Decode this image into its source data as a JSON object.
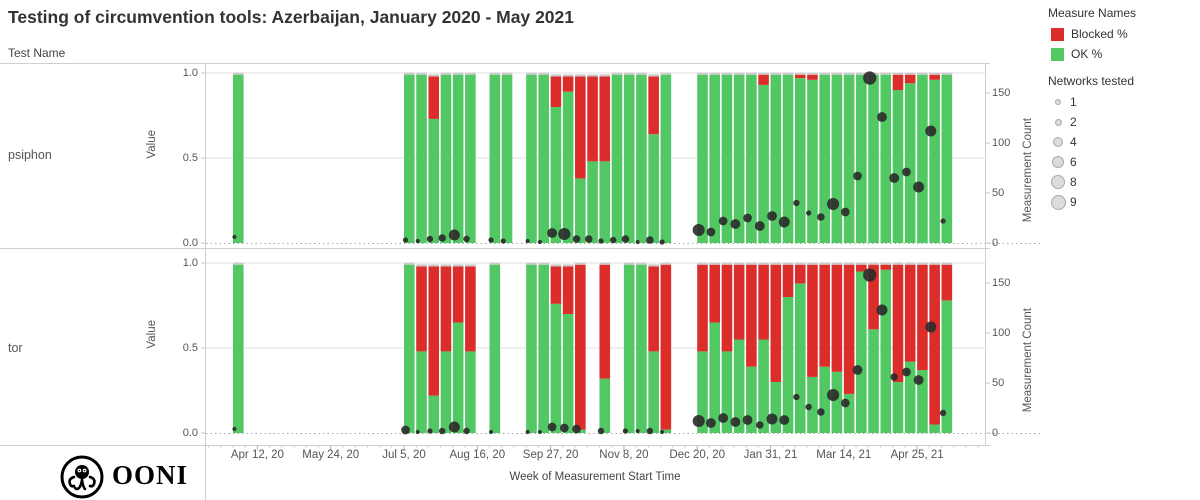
{
  "title": "Testing of circumvention tools: Azerbaijan, January 2020 - May 2021",
  "row_header": "Test Name",
  "colors": {
    "blocked": "#db2d2a",
    "ok": "#52c864",
    "dot": "#2a2a2a"
  },
  "y_axis": {
    "title": "Value",
    "ticks": [
      "1.0",
      "0.5",
      "0.0"
    ]
  },
  "y2_axis": {
    "title": "Measurement Count",
    "ticks": [
      "0",
      "50",
      "100",
      "150"
    ]
  },
  "x_axis": {
    "title": "Week of Measurement Start Time",
    "ticks": [
      {
        "label": "Apr 12, 20",
        "date": "2020-04-12"
      },
      {
        "label": "May 24, 20",
        "date": "2020-05-24"
      },
      {
        "label": "Jul 5, 20",
        "date": "2020-07-05"
      },
      {
        "label": "Aug 16, 20",
        "date": "2020-08-16"
      },
      {
        "label": "Sep 27, 20",
        "date": "2020-09-27"
      },
      {
        "label": "Nov 8, 20",
        "date": "2020-11-08"
      },
      {
        "label": "Dec 20, 20",
        "date": "2020-12-20"
      },
      {
        "label": "Jan 31, 21",
        "date": "2021-01-31"
      },
      {
        "label": "Mar 14, 21",
        "date": "2021-03-14"
      },
      {
        "label": "Apr 25, 21",
        "date": "2021-04-25"
      }
    ]
  },
  "legend": {
    "measure_title": "Measure Names",
    "measures": [
      {
        "label": "Blocked %",
        "color": "#db2d2a"
      },
      {
        "label": "OK %",
        "color": "#52c864"
      }
    ],
    "networks_title": "Networks tested",
    "network_sizes": [
      1,
      2,
      4,
      6,
      8,
      9
    ]
  },
  "footer": {
    "brand": "OONI",
    "logo_icon": "ooni-octopus-icon"
  },
  "chart_data": {
    "type": "bar",
    "stacked": true,
    "value_range": [
      0,
      1
    ],
    "count_range": [
      0,
      175
    ],
    "origin_week": "2020-07-05",
    "panels": [
      {
        "test": "psiphon",
        "bars": [
          {
            "w": "2020-03-29",
            "b": 0.0,
            "o": 0.99,
            "c": 6,
            "n": 1
          },
          {
            "w": "2020-07-05",
            "b": 0.0,
            "o": 0.99,
            "c": 3,
            "n": 2
          },
          {
            "w": "2020-07-12",
            "b": 0.0,
            "o": 0.99,
            "c": 2,
            "n": 1
          },
          {
            "w": "2020-07-19",
            "b": 0.25,
            "o": 0.73,
            "c": 4,
            "n": 3
          },
          {
            "w": "2020-07-26",
            "b": 0.0,
            "o": 0.99,
            "c": 5,
            "n": 4
          },
          {
            "w": "2020-08-02",
            "b": 0.0,
            "o": 0.99,
            "c": 8,
            "n": 7
          },
          {
            "w": "2020-08-09",
            "b": 0.0,
            "o": 0.99,
            "c": 4,
            "n": 3
          },
          {
            "w": "2020-08-23",
            "b": 0.0,
            "o": 0.99,
            "c": 3,
            "n": 2
          },
          {
            "w": "2020-08-30",
            "b": 0.0,
            "o": 0.99,
            "c": 2,
            "n": 2
          },
          {
            "w": "2020-09-13",
            "b": 0.0,
            "o": 0.99,
            "c": 2,
            "n": 1
          },
          {
            "w": "2020-09-20",
            "b": 0.0,
            "o": 0.99,
            "c": 1,
            "n": 1
          },
          {
            "w": "2020-09-27",
            "b": 0.18,
            "o": 0.8,
            "c": 10,
            "n": 6
          },
          {
            "w": "2020-10-04",
            "b": 0.09,
            "o": 0.89,
            "c": 9,
            "n": 8
          },
          {
            "w": "2020-10-11",
            "b": 0.6,
            "o": 0.38,
            "c": 4,
            "n": 4
          },
          {
            "w": "2020-10-18",
            "b": 0.5,
            "o": 0.48,
            "c": 4,
            "n": 4
          },
          {
            "w": "2020-10-25",
            "b": 0.5,
            "o": 0.48,
            "c": 2,
            "n": 2
          },
          {
            "w": "2020-11-01",
            "b": 0.0,
            "o": 0.99,
            "c": 3,
            "n": 3
          },
          {
            "w": "2020-11-08",
            "b": 0.0,
            "o": 0.99,
            "c": 4,
            "n": 4
          },
          {
            "w": "2020-11-15",
            "b": 0.0,
            "o": 0.99,
            "c": 1,
            "n": 1
          },
          {
            "w": "2020-11-22",
            "b": 0.34,
            "o": 0.64,
            "c": 3,
            "n": 4
          },
          {
            "w": "2020-11-29",
            "b": 0.0,
            "o": 0.99,
            "c": 1,
            "n": 2
          },
          {
            "w": "2020-12-20",
            "b": 0.0,
            "o": 0.99,
            "c": 13,
            "n": 8
          },
          {
            "w": "2020-12-27",
            "b": 0.0,
            "o": 0.99,
            "c": 11,
            "n": 5
          },
          {
            "w": "2021-01-03",
            "b": 0.0,
            "o": 0.99,
            "c": 22,
            "n": 5
          },
          {
            "w": "2021-01-10",
            "b": 0.0,
            "o": 0.99,
            "c": 19,
            "n": 6
          },
          {
            "w": "2021-01-17",
            "b": 0.0,
            "o": 0.99,
            "c": 25,
            "n": 5
          },
          {
            "w": "2021-01-24",
            "b": 0.06,
            "o": 0.93,
            "c": 17,
            "n": 6
          },
          {
            "w": "2021-01-31",
            "b": 0.0,
            "o": 0.99,
            "c": 27,
            "n": 6
          },
          {
            "w": "2021-02-07",
            "b": 0.0,
            "o": 0.99,
            "c": 21,
            "n": 7
          },
          {
            "w": "2021-02-14",
            "b": 0.02,
            "o": 0.97,
            "c": 40,
            "n": 3
          },
          {
            "w": "2021-02-21",
            "b": 0.03,
            "o": 0.96,
            "c": 30,
            "n": 2
          },
          {
            "w": "2021-02-28",
            "b": 0.0,
            "o": 0.99,
            "c": 26,
            "n": 4
          },
          {
            "w": "2021-03-07",
            "b": 0.0,
            "o": 0.99,
            "c": 39,
            "n": 8
          },
          {
            "w": "2021-03-14",
            "b": 0.0,
            "o": 0.99,
            "c": 31,
            "n": 5
          },
          {
            "w": "2021-03-21",
            "b": 0.0,
            "o": 0.99,
            "c": 67,
            "n": 5
          },
          {
            "w": "2021-03-28",
            "b": 0.0,
            "o": 0.99,
            "c": 165,
            "n": 9
          },
          {
            "w": "2021-04-04",
            "b": 0.0,
            "o": 0.99,
            "c": 126,
            "n": 6
          },
          {
            "w": "2021-04-11",
            "b": 0.09,
            "o": 0.9,
            "c": 65,
            "n": 6
          },
          {
            "w": "2021-04-18",
            "b": 0.05,
            "o": 0.94,
            "c": 71,
            "n": 5
          },
          {
            "w": "2021-04-25",
            "b": 0.0,
            "o": 0.99,
            "c": 56,
            "n": 7
          },
          {
            "w": "2021-05-02",
            "b": 0.03,
            "o": 0.96,
            "c": 112,
            "n": 7
          },
          {
            "w": "2021-05-09",
            "b": 0.0,
            "o": 0.99,
            "c": 22,
            "n": 2
          }
        ]
      },
      {
        "test": "tor",
        "bars": [
          {
            "w": "2020-03-29",
            "b": 0.0,
            "o": 0.99,
            "c": 4,
            "n": 1
          },
          {
            "w": "2020-07-05",
            "b": 0.0,
            "o": 0.99,
            "c": 3,
            "n": 5
          },
          {
            "w": "2020-07-12",
            "b": 0.5,
            "o": 0.48,
            "c": 1,
            "n": 1
          },
          {
            "w": "2020-07-19",
            "b": 0.76,
            "o": 0.22,
            "c": 2,
            "n": 2
          },
          {
            "w": "2020-07-26",
            "b": 0.5,
            "o": 0.48,
            "c": 2,
            "n": 3
          },
          {
            "w": "2020-08-02",
            "b": 0.33,
            "o": 0.65,
            "c": 6,
            "n": 7
          },
          {
            "w": "2020-08-09",
            "b": 0.5,
            "o": 0.48,
            "c": 2,
            "n": 3
          },
          {
            "w": "2020-08-23",
            "b": 0.0,
            "o": 0.99,
            "c": 1,
            "n": 1
          },
          {
            "w": "2020-09-13",
            "b": 0.0,
            "o": 0.99,
            "c": 1,
            "n": 1
          },
          {
            "w": "2020-09-20",
            "b": 0.0,
            "o": 0.99,
            "c": 1,
            "n": 1
          },
          {
            "w": "2020-09-27",
            "b": 0.22,
            "o": 0.76,
            "c": 6,
            "n": 5
          },
          {
            "w": "2020-10-04",
            "b": 0.28,
            "o": 0.7,
            "c": 5,
            "n": 5
          },
          {
            "w": "2020-10-11",
            "b": 0.97,
            "o": 0.02,
            "c": 4,
            "n": 5
          },
          {
            "w": "2020-10-25",
            "b": 0.67,
            "o": 0.32,
            "c": 2,
            "n": 3
          },
          {
            "w": "2020-11-08",
            "b": 0.0,
            "o": 0.99,
            "c": 2,
            "n": 2
          },
          {
            "w": "2020-11-15",
            "b": 0.0,
            "o": 0.99,
            "c": 2,
            "n": 1
          },
          {
            "w": "2020-11-22",
            "b": 0.5,
            "o": 0.48,
            "c": 2,
            "n": 3
          },
          {
            "w": "2020-11-29",
            "b": 0.97,
            "o": 0.02,
            "c": 1,
            "n": 1
          },
          {
            "w": "2020-12-20",
            "b": 0.51,
            "o": 0.48,
            "c": 12,
            "n": 8
          },
          {
            "w": "2020-12-27",
            "b": 0.34,
            "o": 0.65,
            "c": 10,
            "n": 6
          },
          {
            "w": "2021-01-03",
            "b": 0.51,
            "o": 0.48,
            "c": 15,
            "n": 6
          },
          {
            "w": "2021-01-10",
            "b": 0.44,
            "o": 0.55,
            "c": 11,
            "n": 6
          },
          {
            "w": "2021-01-17",
            "b": 0.6,
            "o": 0.39,
            "c": 13,
            "n": 6
          },
          {
            "w": "2021-01-24",
            "b": 0.44,
            "o": 0.55,
            "c": 8,
            "n": 4
          },
          {
            "w": "2021-01-31",
            "b": 0.69,
            "o": 0.3,
            "c": 14,
            "n": 7
          },
          {
            "w": "2021-02-07",
            "b": 0.19,
            "o": 0.8,
            "c": 13,
            "n": 6
          },
          {
            "w": "2021-02-14",
            "b": 0.11,
            "o": 0.88,
            "c": 36,
            "n": 3
          },
          {
            "w": "2021-02-21",
            "b": 0.66,
            "o": 0.33,
            "c": 26,
            "n": 3
          },
          {
            "w": "2021-02-28",
            "b": 0.6,
            "o": 0.39,
            "c": 21,
            "n": 4
          },
          {
            "w": "2021-03-07",
            "b": 0.63,
            "o": 0.36,
            "c": 38,
            "n": 8
          },
          {
            "w": "2021-03-14",
            "b": 0.76,
            "o": 0.23,
            "c": 30,
            "n": 5
          },
          {
            "w": "2021-03-21",
            "b": 0.04,
            "o": 0.95,
            "c": 63,
            "n": 6
          },
          {
            "w": "2021-03-28",
            "b": 0.38,
            "o": 0.61,
            "c": 158,
            "n": 9
          },
          {
            "w": "2021-04-04",
            "b": 0.03,
            "o": 0.96,
            "c": 123,
            "n": 7
          },
          {
            "w": "2021-04-11",
            "b": 0.69,
            "o": 0.3,
            "c": 56,
            "n": 4
          },
          {
            "w": "2021-04-18",
            "b": 0.57,
            "o": 0.42,
            "c": 61,
            "n": 5
          },
          {
            "w": "2021-04-25",
            "b": 0.62,
            "o": 0.37,
            "c": 53,
            "n": 6
          },
          {
            "w": "2021-05-02",
            "b": 0.94,
            "o": 0.05,
            "c": 106,
            "n": 7
          },
          {
            "w": "2021-05-09",
            "b": 0.21,
            "o": 0.78,
            "c": 20,
            "n": 3
          }
        ]
      }
    ]
  }
}
